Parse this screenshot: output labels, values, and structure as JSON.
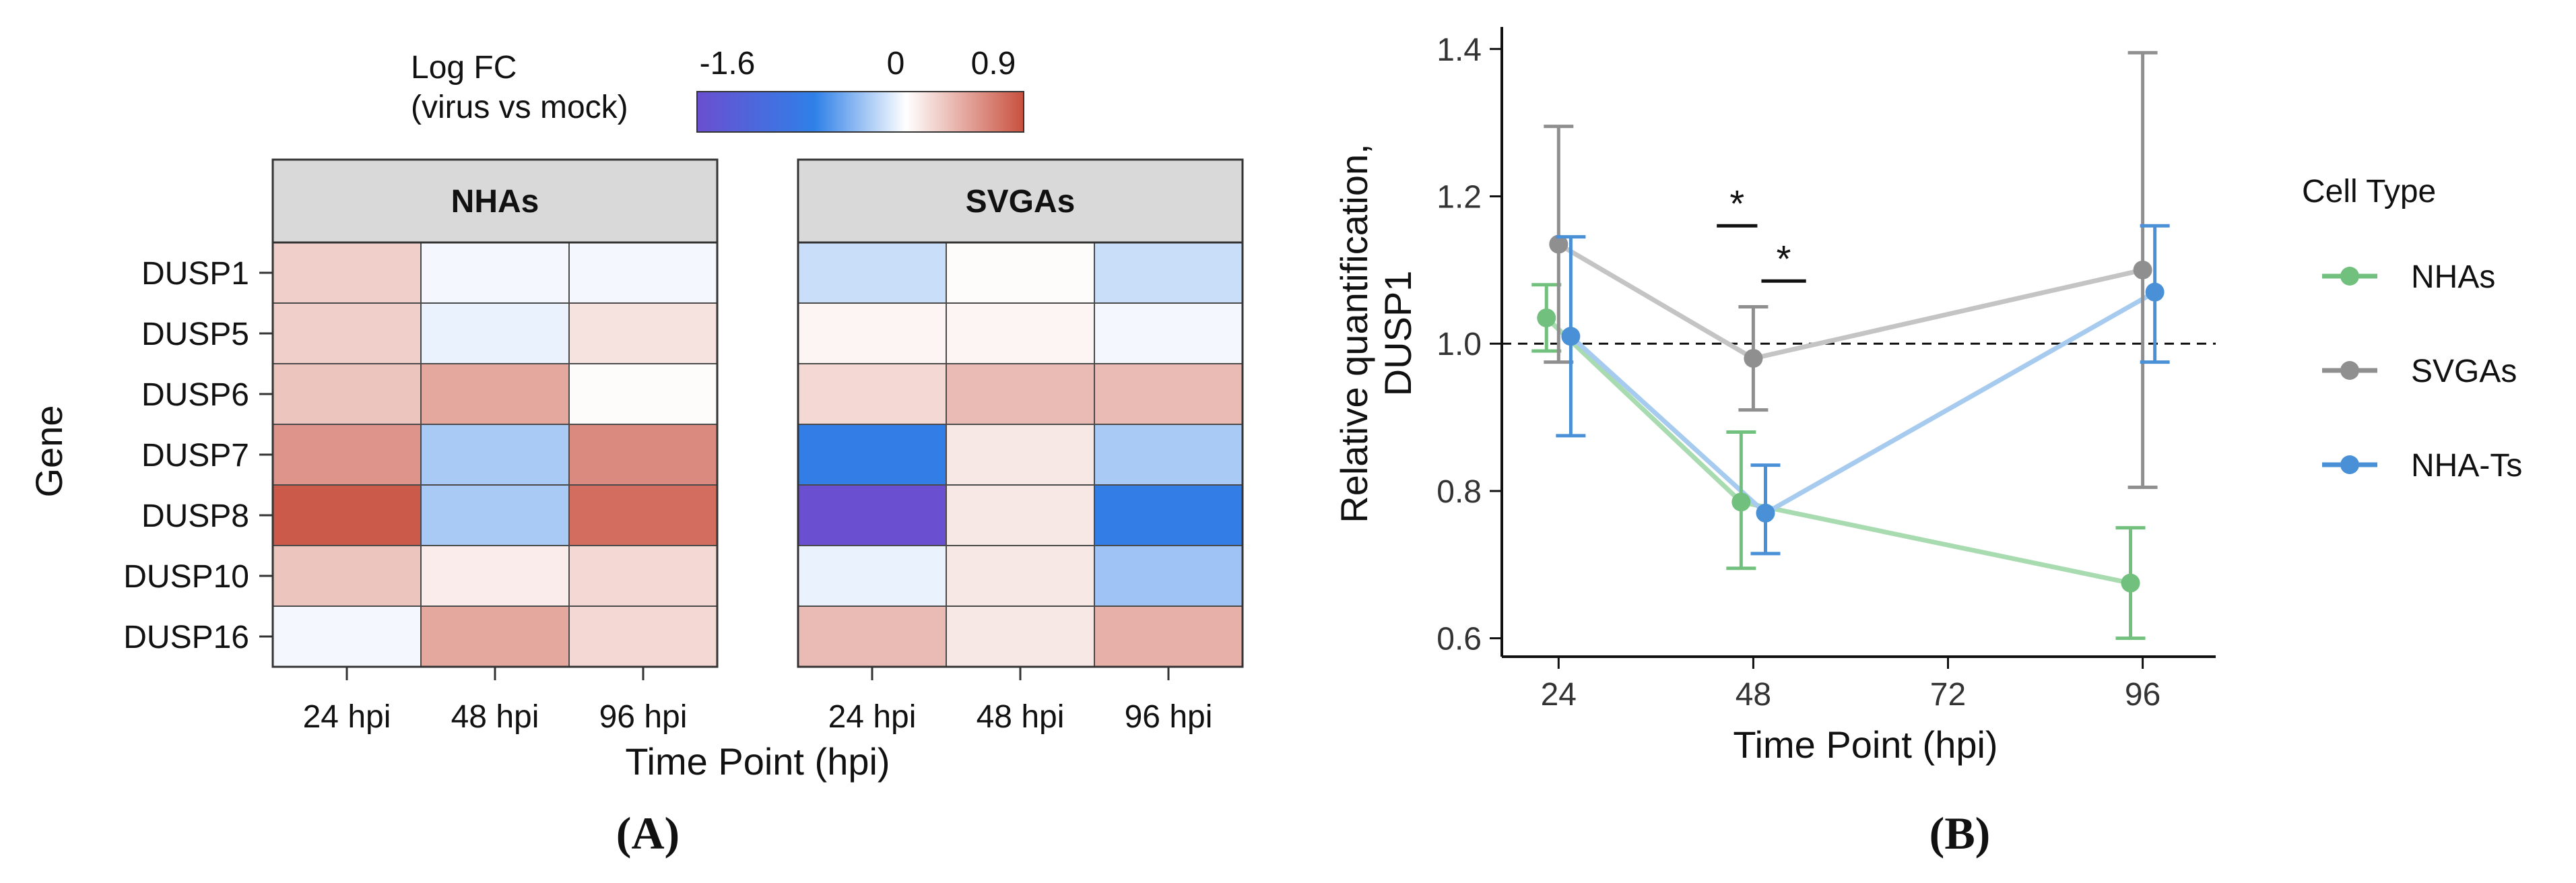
{
  "colors": {
    "neg_end": "#6a4fd0",
    "neg_mid": "#2f80e8",
    "zero": "#ffffff",
    "pos_end": "#c9503f",
    "strip": "#d9d9d9",
    "nhas": "#72c07e",
    "svgas": "#8f8f8f",
    "nhats": "#4a90d6",
    "nhas_light": "#a8dbb0",
    "svgas_light": "#c4c4c4",
    "nhats_light": "#a6cbee"
  },
  "panel_a": {
    "label": "(A)",
    "legend": {
      "title_line1": "Log FC",
      "title_line2": "(virus vs mock)",
      "tick_labels": [
        "-1.6",
        "0",
        "0.9"
      ]
    }
  },
  "panel_b": {
    "label": "(B)",
    "legend": {
      "title": "Cell Type",
      "entries": [
        "NHAs",
        "SVGAs",
        "NHA-Ts"
      ]
    }
  },
  "chart_data": [
    {
      "type": "heatmap",
      "title": "",
      "xlabel": "Time Point (hpi)",
      "ylabel": "Gene",
      "color_scale": {
        "min": -1.6,
        "mid": 0,
        "max": 0.9
      },
      "facets": [
        "NHAs",
        "SVGAs"
      ],
      "columns": [
        "24 hpi",
        "48 hpi",
        "96 hpi"
      ],
      "rows": [
        "DUSP1",
        "DUSP5",
        "DUSP6",
        "DUSP7",
        "DUSP8",
        "DUSP10",
        "DUSP16"
      ],
      "values": {
        "NHAs": [
          [
            0.25,
            -0.05,
            -0.05
          ],
          [
            0.25,
            -0.1,
            0.15
          ],
          [
            0.3,
            0.45,
            0.02
          ],
          [
            0.55,
            -0.4,
            0.6
          ],
          [
            0.85,
            -0.4,
            0.75
          ],
          [
            0.3,
            0.1,
            0.2
          ],
          [
            -0.05,
            0.45,
            0.2
          ]
        ],
        "SVGAs": [
          [
            -0.25,
            0.02,
            -0.25
          ],
          [
            0.05,
            0.05,
            -0.05
          ],
          [
            0.2,
            0.35,
            0.35
          ],
          [
            -1.0,
            0.12,
            -0.4
          ],
          [
            -1.6,
            0.12,
            -1.0
          ],
          [
            -0.1,
            0.12,
            -0.45
          ],
          [
            0.35,
            0.12,
            0.4
          ]
        ]
      }
    },
    {
      "type": "line",
      "title": "",
      "xlabel": "Time Point (hpi)",
      "ylabel_line1": "Relative quantification,",
      "ylabel_line2": "DUSP1",
      "xlim": [
        17,
        105
      ],
      "ylim": [
        0.575,
        1.43
      ],
      "xticks": [
        24,
        48,
        72,
        96
      ],
      "xtick_labels": [
        "24",
        "48",
        "72",
        "96"
      ],
      "yticks": [
        0.6,
        0.8,
        1.0,
        1.2,
        1.4
      ],
      "ytick_labels": [
        "0.6",
        "0.8",
        "1.0",
        "1.2",
        "1.4"
      ],
      "reference_line": 1.0,
      "series": [
        {
          "name": "NHAs",
          "x": [
            22.5,
            46.5,
            94.5
          ],
          "y": [
            1.035,
            0.785,
            0.675
          ],
          "err_low": [
            0.99,
            0.695,
            0.6
          ],
          "err_high": [
            1.08,
            0.88,
            0.75
          ]
        },
        {
          "name": "SVGAs",
          "x": [
            24,
            48,
            96
          ],
          "y": [
            1.135,
            0.98,
            1.1
          ],
          "err_low": [
            0.975,
            0.91,
            0.805
          ],
          "err_high": [
            1.295,
            1.05,
            1.395
          ]
        },
        {
          "name": "NHA-Ts",
          "x": [
            25.5,
            49.5,
            97.5
          ],
          "y": [
            1.01,
            0.77,
            1.07
          ],
          "err_low": [
            0.875,
            0.715,
            0.975
          ],
          "err_high": [
            1.145,
            0.835,
            1.16
          ]
        }
      ],
      "significance": [
        {
          "label": "*",
          "x_from": 43.5,
          "x_to": 48.5,
          "y": 1.16
        },
        {
          "label": "*",
          "x_from": 49,
          "x_to": 54.5,
          "y": 1.085
        }
      ]
    }
  ]
}
